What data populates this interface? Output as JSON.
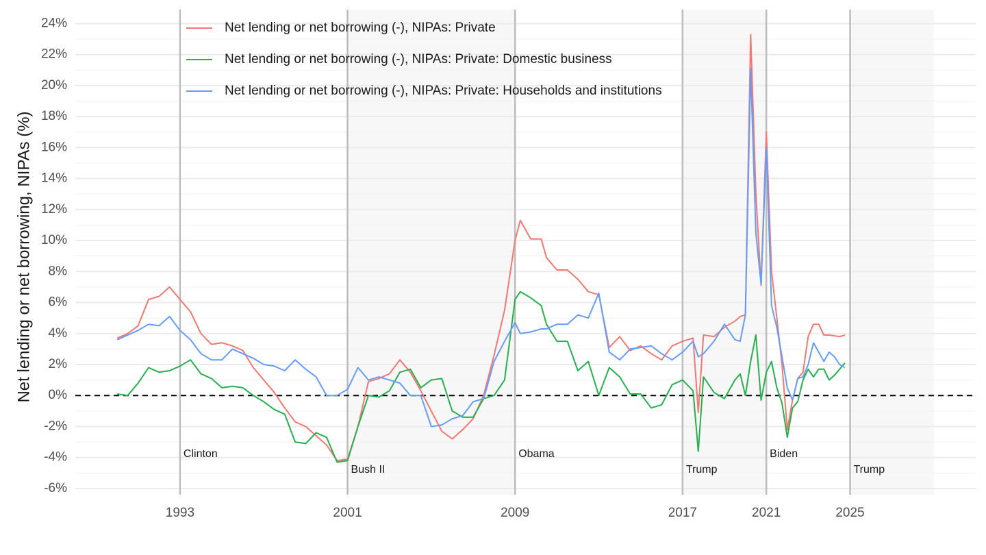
{
  "chart_data": {
    "type": "line",
    "ylabel": "Net lending or net borrowing, NIPAs (%)",
    "xlim": [
      1988,
      2031
    ],
    "xticks": [
      1993,
      2001,
      2009,
      2017,
      2021,
      2025
    ],
    "ylim": [
      -6.4,
      24.9
    ],
    "yticks": [
      {
        "value": -6,
        "label": "-6%"
      },
      {
        "value": -4,
        "label": "-4%"
      },
      {
        "value": -2,
        "label": "-2%"
      },
      {
        "value": 0,
        "label": "0%"
      },
      {
        "value": 2,
        "label": "2%"
      },
      {
        "value": 4,
        "label": "4%"
      },
      {
        "value": 6,
        "label": "6%"
      },
      {
        "value": 8,
        "label": "8%"
      },
      {
        "value": 10,
        "label": "10%"
      },
      {
        "value": 12,
        "label": "12%"
      },
      {
        "value": 14,
        "label": "14%"
      },
      {
        "value": 16,
        "label": "16%"
      },
      {
        "value": 18,
        "label": "18%"
      },
      {
        "value": 20,
        "label": "20%"
      },
      {
        "value": 22,
        "label": "22%"
      },
      {
        "value": 24,
        "label": "24%"
      }
    ],
    "grid": true,
    "legend": "top-left",
    "hline": 0,
    "presidents": [
      {
        "name": "Clinton",
        "start": 1993,
        "end": 2001
      },
      {
        "name": "Bush II",
        "start": 2001,
        "end": 2009
      },
      {
        "name": "Obama",
        "start": 2009,
        "end": 2017
      },
      {
        "name": "Trump",
        "start": 2017,
        "end": 2021
      },
      {
        "name": "Biden",
        "start": 2021,
        "end": 2025
      },
      {
        "name": "Trump",
        "start": 2025,
        "end": 2029
      }
    ],
    "x": [
      1990.0,
      1990.5,
      1991.0,
      1991.5,
      1992.0,
      1992.5,
      1993.0,
      1993.5,
      1994.0,
      1994.5,
      1995.0,
      1995.5,
      1996.0,
      1996.5,
      1997.0,
      1997.5,
      1998.0,
      1998.5,
      1999.0,
      1999.5,
      2000.0,
      2000.5,
      2001.0,
      2001.5,
      2002.0,
      2002.5,
      2003.0,
      2003.5,
      2004.0,
      2004.5,
      2005.0,
      2005.5,
      2006.0,
      2006.5,
      2007.0,
      2007.5,
      2008.0,
      2008.5,
      2009.0,
      2009.25,
      2009.75,
      2010.25,
      2010.5,
      2011.0,
      2011.5,
      2012.0,
      2012.5,
      2013.0,
      2013.5,
      2014.0,
      2014.5,
      2015.0,
      2015.5,
      2016.0,
      2016.5,
      2017.0,
      2017.5,
      2017.75,
      2018.0,
      2018.5,
      2019.0,
      2019.5,
      2019.75,
      2020.0,
      2020.25,
      2020.5,
      2020.75,
      2021.0,
      2021.25,
      2021.5,
      2021.75,
      2022.0,
      2022.25,
      2022.5,
      2022.75,
      2023.0,
      2023.25,
      2023.5,
      2023.75,
      2024.0,
      2024.25,
      2024.5,
      2024.75
    ],
    "series": [
      {
        "name": "Net lending or net borrowing (-), NIPAs: Private",
        "color": "#f8766d",
        "values": [
          3.7,
          4.0,
          4.5,
          6.2,
          6.4,
          7.0,
          6.2,
          5.4,
          4.0,
          3.3,
          3.4,
          3.2,
          2.9,
          1.8,
          1.0,
          0.2,
          -0.8,
          -1.7,
          -2.0,
          -2.6,
          -3.2,
          -4.2,
          -4.1,
          -2.0,
          0.9,
          1.1,
          1.4,
          2.3,
          1.5,
          0.3,
          -1.0,
          -2.3,
          -2.8,
          -2.2,
          -1.5,
          0.0,
          2.6,
          5.5,
          10.0,
          11.3,
          10.1,
          10.1,
          8.9,
          8.1,
          8.1,
          7.5,
          6.7,
          6.5,
          3.1,
          3.8,
          2.9,
          3.2,
          2.7,
          2.3,
          3.2,
          3.5,
          3.7,
          -1.1,
          3.9,
          3.8,
          4.4,
          4.8,
          5.1,
          5.2,
          23.3,
          13.0,
          7.1,
          17.0,
          8.0,
          5.0,
          2.0,
          -2.2,
          -0.3,
          1.1,
          1.5,
          3.8,
          4.6,
          4.6,
          3.9,
          3.9,
          3.85,
          3.8,
          3.9
        ]
      },
      {
        "name": "Net lending or net borrowing (-), NIPAs: Private: Domestic business",
        "color": "#22b24c",
        "values": [
          0.1,
          0.0,
          0.8,
          1.8,
          1.5,
          1.6,
          1.9,
          2.3,
          1.4,
          1.1,
          0.5,
          0.6,
          0.5,
          0.0,
          -0.4,
          -0.9,
          -1.2,
          -3.0,
          -3.1,
          -2.4,
          -2.7,
          -4.3,
          -4.2,
          -2.0,
          0.0,
          -0.1,
          0.3,
          1.5,
          1.7,
          0.5,
          1.0,
          1.1,
          -1.0,
          -1.4,
          -1.4,
          -0.2,
          0.0,
          1.0,
          6.2,
          6.7,
          6.3,
          5.8,
          4.6,
          3.5,
          3.5,
          1.6,
          2.2,
          0.0,
          1.8,
          1.2,
          0.1,
          0.1,
          -0.8,
          -0.6,
          0.7,
          1.0,
          0.3,
          -3.6,
          1.2,
          0.2,
          -0.2,
          1.0,
          1.4,
          0.0,
          2.2,
          3.9,
          -0.3,
          1.5,
          2.2,
          0.5,
          -0.5,
          -2.7,
          -0.8,
          -0.4,
          1.0,
          1.7,
          1.2,
          1.7,
          1.7,
          1.0,
          1.3,
          1.7,
          2.1
        ]
      },
      {
        "name": "Net lending or net borrowing (-), NIPAs: Private: Households and institutions",
        "color": "#619cff",
        "values": [
          3.6,
          3.9,
          4.2,
          4.6,
          4.5,
          5.1,
          4.2,
          3.6,
          2.7,
          2.3,
          2.3,
          3.0,
          2.7,
          2.4,
          2.0,
          1.9,
          1.6,
          2.3,
          1.7,
          1.2,
          0.0,
          0.0,
          0.4,
          1.8,
          1.0,
          1.2,
          1.0,
          0.8,
          0.0,
          0.0,
          -2.0,
          -1.9,
          -1.5,
          -1.3,
          -0.4,
          -0.2,
          2.2,
          3.5,
          4.7,
          4.0,
          4.1,
          4.3,
          4.3,
          4.6,
          4.6,
          5.2,
          5.0,
          6.6,
          2.8,
          2.3,
          3.0,
          3.1,
          3.2,
          2.7,
          2.3,
          2.8,
          3.5,
          2.5,
          2.7,
          3.5,
          4.6,
          3.6,
          3.5,
          5.2,
          21.1,
          10.5,
          7.2,
          16.0,
          5.8,
          4.4,
          2.5,
          0.5,
          -0.3,
          1.1,
          1.2,
          2.0,
          3.4,
          2.8,
          2.2,
          2.8,
          2.5,
          2.0,
          1.8
        ]
      }
    ]
  }
}
